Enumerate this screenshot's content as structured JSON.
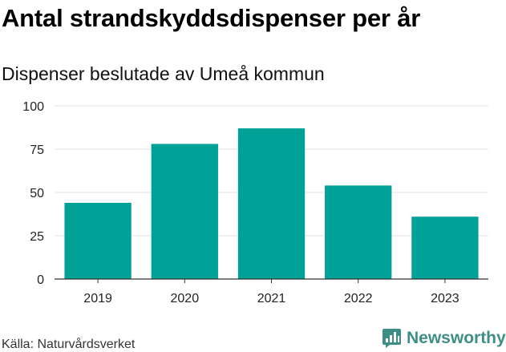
{
  "title": "Antal strandskyddsdispenser per år",
  "subtitle": "Dispenser beslutade av Umeå kommun",
  "source": "Källa: Naturvårdsverket",
  "brand": {
    "name": "Newsworthy",
    "icon": "newsworthy-logo-icon",
    "color": "#3d8f86"
  },
  "chart_data": {
    "type": "bar",
    "title": "Antal strandskyddsdispenser per år",
    "subtitle": "Dispenser beslutade av Umeå kommun",
    "xlabel": "",
    "ylabel": "",
    "categories": [
      "2019",
      "2020",
      "2021",
      "2022",
      "2023"
    ],
    "values": [
      44,
      78,
      87,
      54,
      36
    ],
    "ylim": [
      0,
      100
    ],
    "yticks": [
      0,
      25,
      50,
      75,
      100
    ],
    "grid": true,
    "bar_color": "#00a196",
    "grid_color": "#e3e3e3"
  }
}
